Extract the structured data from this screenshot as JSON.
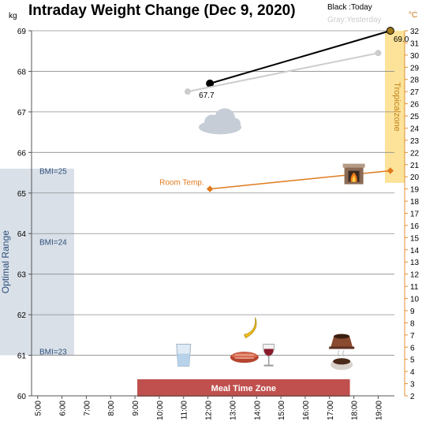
{
  "chart_data": {
    "type": "line",
    "title": "Intraday Weight Change (Dec 9, 2020)",
    "y_unit_left": "kg",
    "y_unit_right": "°C",
    "legend_today": "Black :Today",
    "legend_yesterday": "Gray:Yesterday",
    "x_ticks": [
      "5:00",
      "6:00",
      "7:00",
      "8:00",
      "9:00",
      "10:00",
      "11:00",
      "12:00",
      "13:00",
      "14:00",
      "15:00",
      "16:00",
      "17:00",
      "18:00",
      "19:00"
    ],
    "x_range": [
      "4:45",
      "19:40"
    ],
    "y_left_ticks": [
      "60",
      "61",
      "62",
      "63",
      "64",
      "65",
      "66",
      "67",
      "68",
      "69"
    ],
    "ylim_left": [
      60,
      69
    ],
    "y_right_ticks": [
      "2",
      "3",
      "4",
      "5",
      "6",
      "7",
      "8",
      "9",
      "10",
      "11",
      "12",
      "13",
      "14",
      "15",
      "16",
      "17",
      "18",
      "19",
      "20",
      "21",
      "22",
      "23",
      "24",
      "25",
      "26",
      "27",
      "28",
      "29",
      "30",
      "31",
      "32"
    ],
    "ylim_right": [
      2,
      32
    ],
    "grid": true,
    "series": [
      {
        "id": "today",
        "color": "#000000",
        "points": [
          {
            "x": "12:05",
            "y": 67.7,
            "label": "67.7"
          },
          {
            "x": "19:30",
            "y": 69.0,
            "label": "69.0"
          }
        ]
      },
      {
        "id": "yesterday",
        "color": "#cccccc",
        "points": [
          {
            "x": "11:10",
            "y": 67.5
          },
          {
            "x": "19:00",
            "y": 68.45
          }
        ]
      },
      {
        "id": "room-temp",
        "name": "Room Temp.",
        "axis": "right",
        "color": "#e07a1f",
        "points": [
          {
            "x": "12:05",
            "y": 19.0
          },
          {
            "x": "19:30",
            "y": 20.5
          }
        ]
      }
    ],
    "bands": {
      "optimal": {
        "label": "Optimal Range",
        "y_range": [
          61.0,
          65.6
        ],
        "color": "#d9e0e8",
        "text_color": "#2e4f7a"
      },
      "bmi_labels": [
        {
          "label": "BMI=25",
          "y": 65.55
        },
        {
          "label": "BMI=24",
          "y": 63.8
        },
        {
          "label": "BMI=23",
          "y": 61.1
        }
      ],
      "tropical": {
        "label": "Tropicalzone",
        "y_range_right": [
          19.5,
          32
        ],
        "color": "#fde39a",
        "text_color": "#c08018"
      },
      "meal_time": {
        "label": "Meal Time Zone",
        "x_range": [
          "9:00",
          "18:00"
        ],
        "color": "#c0504d"
      }
    },
    "icons": [
      {
        "name": "cloud-icon",
        "x": "12:30",
        "y": 66.7
      },
      {
        "name": "fireplace-icon",
        "x": "18:00",
        "y": 65.45
      },
      {
        "name": "banana-icon",
        "x": "13:45",
        "y": 61.7
      },
      {
        "name": "water-glass-icon",
        "x": "11:00",
        "y": 61.0
      },
      {
        "name": "steak-icon",
        "x": "13:30",
        "y": 60.95
      },
      {
        "name": "wine-glass-icon",
        "x": "14:30",
        "y": 61.0
      },
      {
        "name": "pudding-icon",
        "x": "17:30",
        "y": 61.35
      },
      {
        "name": "coffee-icon",
        "x": "17:30",
        "y": 60.85
      }
    ]
  }
}
